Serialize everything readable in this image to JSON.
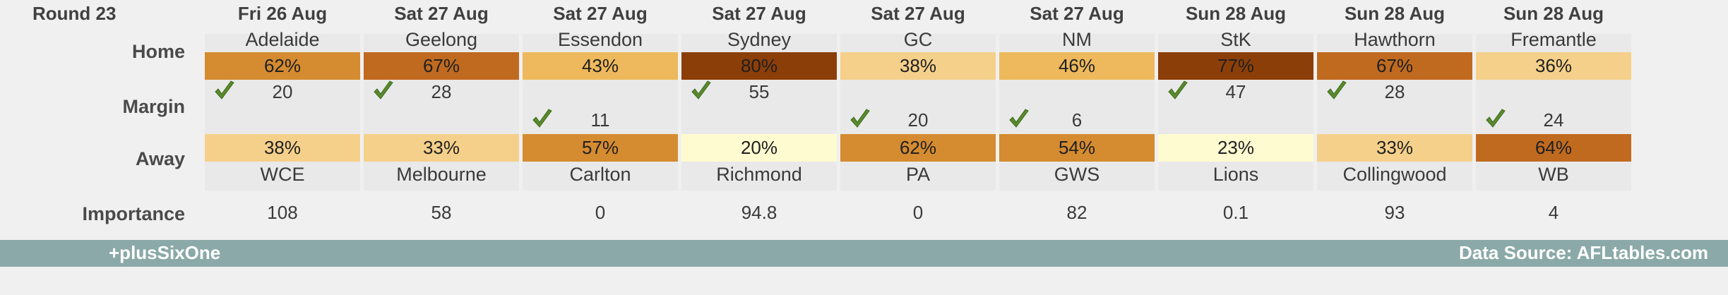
{
  "header": {
    "round": "Round 23"
  },
  "labels": {
    "home": "Home",
    "margin": "Margin",
    "away": "Away",
    "importance": "Importance"
  },
  "footer": {
    "brand": "+plusSixOne",
    "source": "Data Source: AFLtables.com"
  },
  "colors": {
    "scale": [
      "#fffbd0",
      "#f5d08a",
      "#eeb95c",
      "#d58b30",
      "#c06a20",
      "#8c3e08"
    ],
    "check": "#5a8a2e",
    "footer": "#8aa9a8"
  },
  "chart_data": {
    "type": "table",
    "games": [
      {
        "date": "Fri 26 Aug",
        "home": "Adelaide",
        "home_pct": "62%",
        "away": "WCE",
        "away_pct": "38%",
        "margin": "20",
        "winner": "home",
        "importance": "108"
      },
      {
        "date": "Sat 27 Aug",
        "home": "Geelong",
        "home_pct": "67%",
        "away": "Melbourne",
        "away_pct": "33%",
        "margin": "28",
        "winner": "home",
        "importance": "58"
      },
      {
        "date": "Sat 27 Aug",
        "home": "Essendon",
        "home_pct": "43%",
        "away": "Carlton",
        "away_pct": "57%",
        "margin": "11",
        "winner": "away",
        "importance": "0"
      },
      {
        "date": "Sat 27 Aug",
        "home": "Sydney",
        "home_pct": "80%",
        "away": "Richmond",
        "away_pct": "20%",
        "margin": "55",
        "winner": "home",
        "importance": "94.8"
      },
      {
        "date": "Sat 27 Aug",
        "home": "GC",
        "home_pct": "38%",
        "away": "PA",
        "away_pct": "62%",
        "margin": "20",
        "winner": "away",
        "importance": "0"
      },
      {
        "date": "Sat 27 Aug",
        "home": "NM",
        "home_pct": "46%",
        "away": "GWS",
        "away_pct": "54%",
        "margin": "6",
        "winner": "away",
        "importance": "82"
      },
      {
        "date": "Sun 28 Aug",
        "home": "StK",
        "home_pct": "77%",
        "away": "Lions",
        "away_pct": "23%",
        "margin": "47",
        "winner": "home",
        "importance": "0.1"
      },
      {
        "date": "Sun 28 Aug",
        "home": "Hawthorn",
        "home_pct": "67%",
        "away": "Collingwood",
        "away_pct": "33%",
        "margin": "28",
        "winner": "home",
        "importance": "93"
      },
      {
        "date": "Sun 28 Aug",
        "home": "Fremantle",
        "home_pct": "36%",
        "away": "WB",
        "away_pct": "64%",
        "margin": "24",
        "winner": "away",
        "importance": "4"
      }
    ]
  }
}
